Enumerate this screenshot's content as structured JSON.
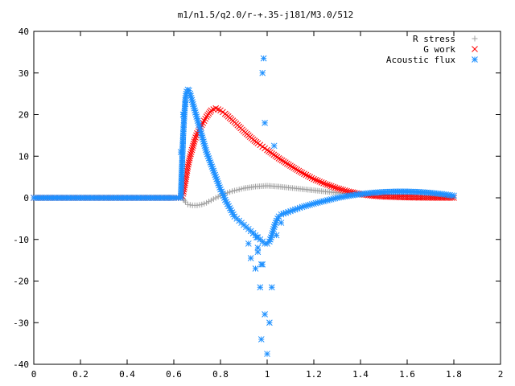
{
  "chart_data": {
    "type": "scatter",
    "title": "m1/n1.5/q2.0/r-+.35-j181/M3.0/512",
    "xlabel": "",
    "ylabel": "",
    "xlim": [
      0,
      2
    ],
    "ylim": [
      -40,
      40
    ],
    "x_ticks": [
      "0",
      "0.2",
      "0.4",
      "0.6",
      "0.8",
      "1",
      "1.2",
      "1.4",
      "1.6",
      "1.8",
      "2"
    ],
    "y_ticks": [
      "40",
      "30",
      "20",
      "10",
      "0",
      "-10",
      "-20",
      "-30",
      "-40"
    ],
    "grid": false,
    "legend": {
      "position": "top-right"
    },
    "series": [
      {
        "name": "R stress",
        "marker": "+",
        "color": "#a0a0a0",
        "x": [
          0.0,
          0.1,
          0.2,
          0.3,
          0.4,
          0.5,
          0.6,
          0.63,
          0.64,
          0.65,
          0.66,
          0.68,
          0.7,
          0.72,
          0.74,
          0.76,
          0.78,
          0.8,
          0.82,
          0.85,
          0.88,
          0.9,
          0.95,
          1.0,
          1.05,
          1.1,
          1.15,
          1.2,
          1.25,
          1.3,
          1.35,
          1.4,
          1.45,
          1.5,
          1.55,
          1.6,
          1.65,
          1.7,
          1.75,
          1.8
        ],
        "y": [
          0,
          0,
          0,
          0,
          0,
          0,
          0,
          0,
          -0.2,
          -1.0,
          -1.6,
          -1.8,
          -1.8,
          -1.6,
          -1.2,
          -0.6,
          0.0,
          0.5,
          1.0,
          1.6,
          2.0,
          2.3,
          2.7,
          2.9,
          2.7,
          2.4,
          2.1,
          1.8,
          1.5,
          1.2,
          1.0,
          0.8,
          0.6,
          0.5,
          0.4,
          0.3,
          0.2,
          0.15,
          0.1,
          0.05
        ]
      },
      {
        "name": "G work",
        "marker": "x",
        "color": "#ff0000",
        "x": [
          0.0,
          0.1,
          0.2,
          0.3,
          0.4,
          0.5,
          0.6,
          0.63,
          0.64,
          0.65,
          0.66,
          0.67,
          0.68,
          0.69,
          0.7,
          0.72,
          0.74,
          0.76,
          0.78,
          0.8,
          0.82,
          0.84,
          0.86,
          0.88,
          0.9,
          0.92,
          0.94,
          0.96,
          0.98,
          1.0,
          1.05,
          1.1,
          1.15,
          1.2,
          1.25,
          1.3,
          1.35,
          1.4,
          1.45,
          1.5,
          1.55,
          1.6,
          1.65,
          1.7,
          1.75,
          1.8
        ],
        "y": [
          0,
          0,
          0,
          0,
          0,
          0,
          0,
          0,
          1.0,
          4.0,
          7.5,
          10.0,
          12.0,
          14.0,
          15.5,
          17.5,
          19.5,
          21.0,
          21.5,
          21.0,
          20.2,
          19.2,
          18.2,
          17.1,
          16.0,
          15.0,
          14.0,
          13.1,
          12.3,
          11.5,
          9.5,
          7.7,
          6.0,
          4.5,
          3.3,
          2.3,
          1.5,
          0.9,
          0.5,
          0.3,
          0.2,
          0.1,
          0.05,
          0.03,
          0.02,
          0.01
        ]
      },
      {
        "name": "Acoustic flux",
        "marker": "*",
        "color": "#1e90ff",
        "x": [
          0.0,
          0.1,
          0.2,
          0.3,
          0.4,
          0.5,
          0.6,
          0.63,
          0.64,
          0.645,
          0.65,
          0.655,
          0.66,
          0.665,
          0.67,
          0.675,
          0.68,
          0.69,
          0.7,
          0.71,
          0.72,
          0.73,
          0.74,
          0.75,
          0.76,
          0.77,
          0.78,
          0.79,
          0.8,
          0.81,
          0.82,
          0.83,
          0.84,
          0.85,
          0.86,
          0.87,
          0.88,
          0.89,
          0.9,
          0.91,
          0.92,
          0.93,
          0.94,
          0.95,
          0.96,
          0.97,
          0.98,
          0.99,
          1.0,
          1.01,
          1.02,
          1.03,
          1.04,
          1.05,
          1.06,
          1.07,
          1.08,
          1.1,
          1.12,
          1.15,
          1.2,
          1.25,
          1.3,
          1.35,
          1.4,
          1.45,
          1.5,
          1.55,
          1.6,
          1.65,
          1.7,
          1.75,
          1.8,
          0.63,
          0.64,
          0.65,
          0.985,
          0.98,
          0.975,
          0.99,
          0.99,
          1.03,
          0.97,
          1.0,
          0.975,
          0.96,
          1.02,
          0.93,
          0.95,
          1.01,
          0.92,
          0.94,
          0.955,
          0.96,
          0.98,
          1.04,
          1.06
        ],
        "y": [
          0,
          0,
          0,
          0,
          0,
          0,
          0,
          0,
          15.0,
          20.0,
          24.0,
          25.5,
          26.0,
          25.8,
          25.0,
          24.0,
          23.0,
          21.0,
          19.0,
          17.0,
          15.0,
          13.0,
          11.0,
          9.5,
          8.0,
          6.5,
          5.0,
          3.5,
          2.0,
          1.0,
          -0.5,
          -1.5,
          -2.5,
          -3.5,
          -4.5,
          -5.0,
          -5.5,
          -6.0,
          -6.5,
          -7.0,
          -7.5,
          -8.0,
          -8.5,
          -9.0,
          -9.5,
          -10.0,
          -10.5,
          -11.0,
          -11.0,
          -10.5,
          -9.0,
          -7.0,
          -5.5,
          -4.5,
          -4.0,
          -3.8,
          -3.6,
          -3.2,
          -2.8,
          -2.2,
          -1.4,
          -0.7,
          0.0,
          0.5,
          0.9,
          1.2,
          1.4,
          1.5,
          1.5,
          1.4,
          1.2,
          0.9,
          0.5,
          11.0,
          20.0,
          22.5,
          33.5,
          30.0,
          -34.0,
          18.0,
          -28.0,
          12.5,
          -21.5,
          -37.5,
          -16.0,
          -13.0,
          -21.5,
          -14.5,
          -17.0,
          -30.0,
          -11.0,
          -8.5,
          -9.5,
          -12.0,
          -16.0,
          -9.0,
          -6.0
        ]
      }
    ]
  }
}
